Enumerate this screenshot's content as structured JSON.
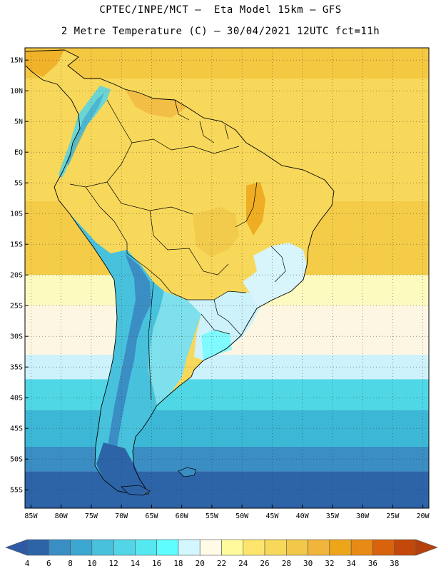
{
  "header": {
    "line1": "CPTEC/INPE/MCT –  Eta Model 15km – GFS",
    "line2": "2 Metre Temperature (C) – 30/04/2021 12UTC fct=11h"
  },
  "map": {
    "variable": "2 Metre Temperature",
    "units": "C",
    "model": "Eta Model 15km",
    "boundary_conditions": "GFS",
    "init": "30/04/2021 12UTC",
    "forecast_hour": "fct=11h",
    "lon_range": [
      -86,
      -19
    ],
    "lat_range": [
      -58,
      17
    ],
    "lat_ticks": [
      "15N",
      "10N",
      "5N",
      "EQ",
      "5S",
      "10S",
      "15S",
      "20S",
      "25S",
      "30S",
      "35S",
      "40S",
      "45S",
      "50S",
      "55S"
    ],
    "lon_ticks": [
      "85W",
      "80W",
      "75W",
      "70W",
      "65W",
      "60W",
      "55W",
      "50W",
      "45W",
      "40W",
      "35W",
      "30W",
      "25W",
      "20W"
    ],
    "gridlines": true,
    "ocean_bands": [
      {
        "from_lat": 17,
        "to_lat": 12,
        "color": "#f5c842"
      },
      {
        "from_lat": 12,
        "to_lat": -8,
        "color": "#f8d85a"
      },
      {
        "from_lat": -8,
        "to_lat": -20,
        "color": "#f5cc48"
      },
      {
        "from_lat": -20,
        "to_lat": -25,
        "color": "#fdfac0"
      },
      {
        "from_lat": -25,
        "to_lat": -33,
        "color": "#fdf6e3"
      },
      {
        "from_lat": -33,
        "to_lat": -37,
        "color": "#cdf2fb"
      },
      {
        "from_lat": -37,
        "to_lat": -42,
        "color": "#4fd7e6"
      },
      {
        "from_lat": -42,
        "to_lat": -48,
        "color": "#3cb8d6"
      },
      {
        "from_lat": -48,
        "to_lat": -52,
        "color": "#3a8ec4"
      },
      {
        "from_lat": -52,
        "to_lat": -58,
        "color": "#2d64a8"
      }
    ]
  },
  "colorbar": {
    "levels": [
      "4",
      "6",
      "8",
      "10",
      "12",
      "14",
      "16",
      "18",
      "20",
      "22",
      "24",
      "26",
      "28",
      "30",
      "32",
      "34",
      "36",
      "38"
    ],
    "colors": [
      "#2f5aa5",
      "#2d64a8",
      "#3a8ec4",
      "#3ca8d2",
      "#48c2dc",
      "#52d5e6",
      "#56e8f0",
      "#5efdff",
      "#d2f7fe",
      "#fffbe6",
      "#fffa9b",
      "#fde56d",
      "#f8d85a",
      "#f1c849",
      "#f1b43c",
      "#eda61a",
      "#e88a16",
      "#d8630c",
      "#c4480a",
      "#b5400c"
    ]
  }
}
